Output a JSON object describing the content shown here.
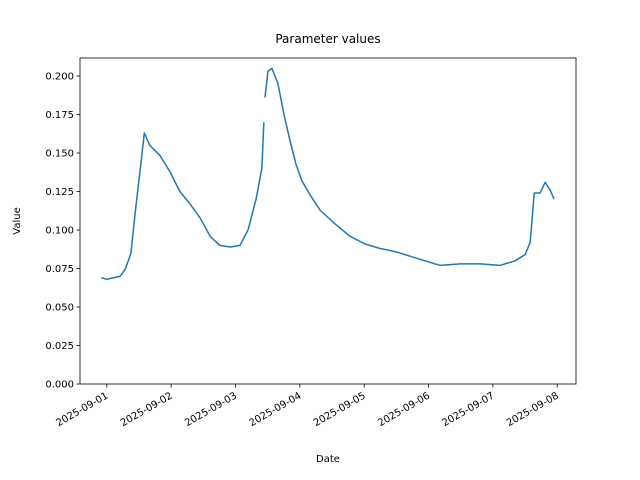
{
  "chart_data": {
    "type": "line",
    "title": "Parameter values",
    "xlabel": "Date",
    "ylabel": "Value",
    "x": [
      "2025-08-31 22:00",
      "2025-09-01 00:00",
      "2025-09-01 05:00",
      "2025-09-01 07:00",
      "2025-09-01 09:00",
      "2025-09-01 10:30",
      "2025-09-01 12:30",
      "2025-09-01 14:00",
      "2025-09-01 16:00",
      "2025-09-01 20:00",
      "2025-09-01 23:30",
      "2025-09-02 03:15",
      "2025-09-02 07:00",
      "2025-09-02 10:45",
      "2025-09-02 14:30",
      "2025-09-02 18:10",
      "2025-09-02 22:00",
      "2025-09-03 01:40",
      "2025-09-03 04:40",
      "2025-09-03 07:40",
      "2025-09-03 09:50",
      "2025-09-03 10:35",
      "2025-09-03 10:50",
      "2025-09-03 11:00",
      "2025-09-03 12:05",
      "2025-09-03 13:35",
      "2025-09-03 15:50",
      "2025-09-03 18:05",
      "2025-09-03 20:20",
      "2025-09-03 22:30",
      "2025-09-04 00:45",
      "2025-09-04 03:45",
      "2025-09-04 07:30",
      "2025-09-04 13:05",
      "2025-09-04 18:40",
      "2025-09-05 00:15",
      "2025-09-05 05:55",
      "2025-09-05 11:30",
      "2025-09-05 17:05",
      "2025-09-05 22:40",
      "2025-09-06 04:20",
      "2025-09-06 11:45",
      "2025-09-06 19:15",
      "2025-09-07 02:40",
      "2025-09-07 08:15",
      "2025-09-07 12:00",
      "2025-09-07 13:55",
      "2025-09-07 15:25",
      "2025-09-07 17:35",
      "2025-09-07 19:30",
      "2025-09-07 21:20",
      "2025-09-07 22:50"
    ],
    "series": [
      {
        "name": "Value",
        "color": "#1f77b4",
        "values": [
          0.069,
          0.068,
          0.07,
          0.075,
          0.085,
          0.11,
          0.14,
          0.163,
          0.155,
          0.148,
          0.138,
          0.125,
          0.117,
          0.108,
          0.096,
          0.09,
          0.089,
          0.09,
          0.1,
          0.12,
          0.14,
          0.17,
          null,
          0.186,
          0.203,
          0.205,
          0.195,
          0.175,
          0.158,
          0.143,
          0.132,
          0.123,
          0.113,
          0.104,
          0.096,
          0.091,
          0.088,
          0.086,
          0.083,
          0.08,
          0.077,
          0.078,
          0.078,
          0.077,
          0.08,
          0.084,
          0.092,
          0.124,
          0.124,
          0.131,
          0.126,
          0.12
        ]
      }
    ],
    "xlim": [
      "2025-08-31 14:00",
      "2025-09-08 07:00"
    ],
    "xticks": [
      "2025-09-01",
      "2025-09-02",
      "2025-09-03",
      "2025-09-04",
      "2025-09-05",
      "2025-09-06",
      "2025-09-07",
      "2025-09-08"
    ],
    "ylim": [
      0,
      0.2117
    ],
    "yticks": [
      {
        "value": 0,
        "label": "0.000"
      },
      0.025,
      {
        "value": 0.05,
        "label": "0.050"
      },
      0.075,
      {
        "value": 0.1,
        "label": "0.100"
      },
      0.125,
      {
        "value": 0.15,
        "label": "0.150"
      },
      0.175,
      {
        "value": 0.2,
        "label": "0.200"
      }
    ],
    "grid": false
  }
}
